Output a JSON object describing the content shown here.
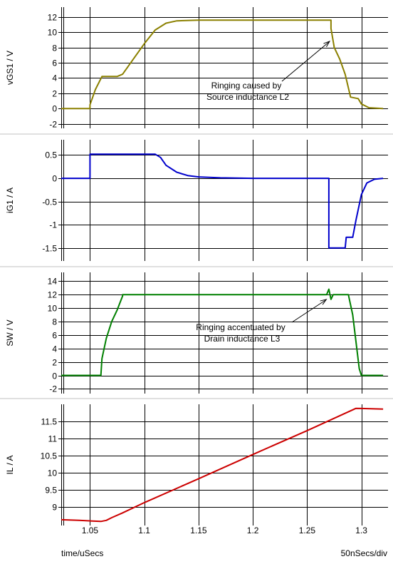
{
  "chart_data": {
    "type": "line",
    "x_ticks": [
      1.05,
      1.1,
      1.15,
      1.2,
      1.25,
      1.3
    ],
    "x_tick_labels": [
      "1.05",
      "1.1",
      "1.15",
      "1.2",
      "1.25",
      "1.3"
    ],
    "xlim": [
      1.0235,
      1.3245
    ],
    "xlabel": "time/uSecs",
    "x_scale_label": "50nSecs/div",
    "grid": true,
    "panels": [
      {
        "ylabel": "vGS1 / V",
        "ylim": [
          -2.6,
          13.3
        ],
        "y_ticks": [
          -2,
          0,
          2,
          4,
          6,
          8,
          10,
          12
        ],
        "y_tick_labels": [
          "-2",
          "0",
          "2",
          "4",
          "6",
          "8",
          "10",
          "12"
        ],
        "series": [
          {
            "color": "#8B8000",
            "points": [
              [
                1.0235,
                0
              ],
              [
                1.05,
                0
              ],
              [
                1.05,
                0.5
              ],
              [
                1.055,
                2.5
              ],
              [
                1.061,
                4.2
              ],
              [
                1.075,
                4.2
              ],
              [
                1.08,
                4.5
              ],
              [
                1.09,
                6.5
              ],
              [
                1.1,
                8.5
              ],
              [
                1.11,
                10.3
              ],
              [
                1.12,
                11.2
              ],
              [
                1.13,
                11.5
              ],
              [
                1.15,
                11.6
              ],
              [
                1.272,
                11.6
              ],
              [
                1.272,
                10.5
              ],
              [
                1.275,
                8.0
              ],
              [
                1.28,
                6.5
              ],
              [
                1.285,
                4.5
              ],
              [
                1.29,
                1.5
              ],
              [
                1.297,
                1.3
              ],
              [
                1.3,
                0.6
              ],
              [
                1.307,
                0.1
              ],
              [
                1.32,
                0
              ]
            ]
          }
        ],
        "annotation": {
          "lines": [
            "Ringing caused by",
            "Source inductance L2"
          ],
          "target": [
            1.272,
            9.0
          ]
        }
      },
      {
        "ylabel": "iG1 / A",
        "ylim": [
          -1.78,
          0.83
        ],
        "y_ticks": [
          -1.5,
          -1,
          -0.5,
          0,
          0.5
        ],
        "y_tick_labels": [
          "-1.5",
          "-1",
          "-0.5",
          "0",
          "0.5"
        ],
        "series": [
          {
            "color": "#0000CC",
            "points": [
              [
                1.0235,
                0
              ],
              [
                1.05,
                0
              ],
              [
                1.05,
                0.52
              ],
              [
                1.11,
                0.52
              ],
              [
                1.115,
                0.45
              ],
              [
                1.12,
                0.28
              ],
              [
                1.13,
                0.13
              ],
              [
                1.14,
                0.06
              ],
              [
                1.15,
                0.03
              ],
              [
                1.17,
                0.01
              ],
              [
                1.2,
                0
              ],
              [
                1.27,
                0
              ],
              [
                1.27,
                -1.5
              ],
              [
                1.285,
                -1.5
              ],
              [
                1.286,
                -1.27
              ],
              [
                1.292,
                -1.27
              ],
              [
                1.295,
                -0.9
              ],
              [
                1.3,
                -0.35
              ],
              [
                1.305,
                -0.1
              ],
              [
                1.312,
                -0.02
              ],
              [
                1.32,
                0
              ]
            ]
          }
        ]
      },
      {
        "ylabel": "SW / V",
        "ylim": [
          -2.7,
          15.3
        ],
        "y_ticks": [
          -2,
          0,
          2,
          4,
          6,
          8,
          10,
          12,
          14
        ],
        "y_tick_labels": [
          "-2",
          "0",
          "2",
          "4",
          "6",
          "8",
          "10",
          "12",
          "14"
        ],
        "series": [
          {
            "color": "#008000",
            "points": [
              [
                1.0235,
                0
              ],
              [
                1.06,
                0
              ],
              [
                1.061,
                2.5
              ],
              [
                1.065,
                5.5
              ],
              [
                1.07,
                8.0
              ],
              [
                1.075,
                9.7
              ],
              [
                1.08,
                11.8
              ],
              [
                1.08,
                12
              ],
              [
                1.268,
                12
              ],
              [
                1.27,
                12.8
              ],
              [
                1.272,
                11.3
              ],
              [
                1.274,
                12
              ],
              [
                1.288,
                12
              ],
              [
                1.292,
                9.0
              ],
              [
                1.295,
                5.0
              ],
              [
                1.298,
                1.0
              ],
              [
                1.3,
                0
              ],
              [
                1.32,
                0
              ]
            ]
          }
        ],
        "annotation": {
          "lines": [
            "Ringing accentuated by",
            "Drain inductance L3"
          ],
          "target": [
            1.269,
            11.5
          ]
        }
      },
      {
        "ylabel": "IL / A",
        "ylim": [
          8.45,
          12.0
        ],
        "y_ticks": [
          9,
          9.5,
          10,
          10.5,
          11,
          11.5
        ],
        "y_tick_labels": [
          "9",
          "9.5",
          "10",
          "10.5",
          "11",
          "11.5"
        ],
        "series": [
          {
            "color": "#CC0000",
            "points": [
              [
                1.0235,
                8.62
              ],
              [
                1.04,
                8.6
              ],
              [
                1.06,
                8.57
              ],
              [
                1.065,
                8.6
              ],
              [
                1.07,
                8.68
              ],
              [
                1.08,
                8.82
              ],
              [
                1.1,
                9.12
              ],
              [
                1.15,
                9.82
              ],
              [
                1.2,
                10.53
              ],
              [
                1.25,
                11.23
              ],
              [
                1.295,
                11.88
              ],
              [
                1.32,
                11.86
              ]
            ]
          }
        ]
      }
    ]
  }
}
